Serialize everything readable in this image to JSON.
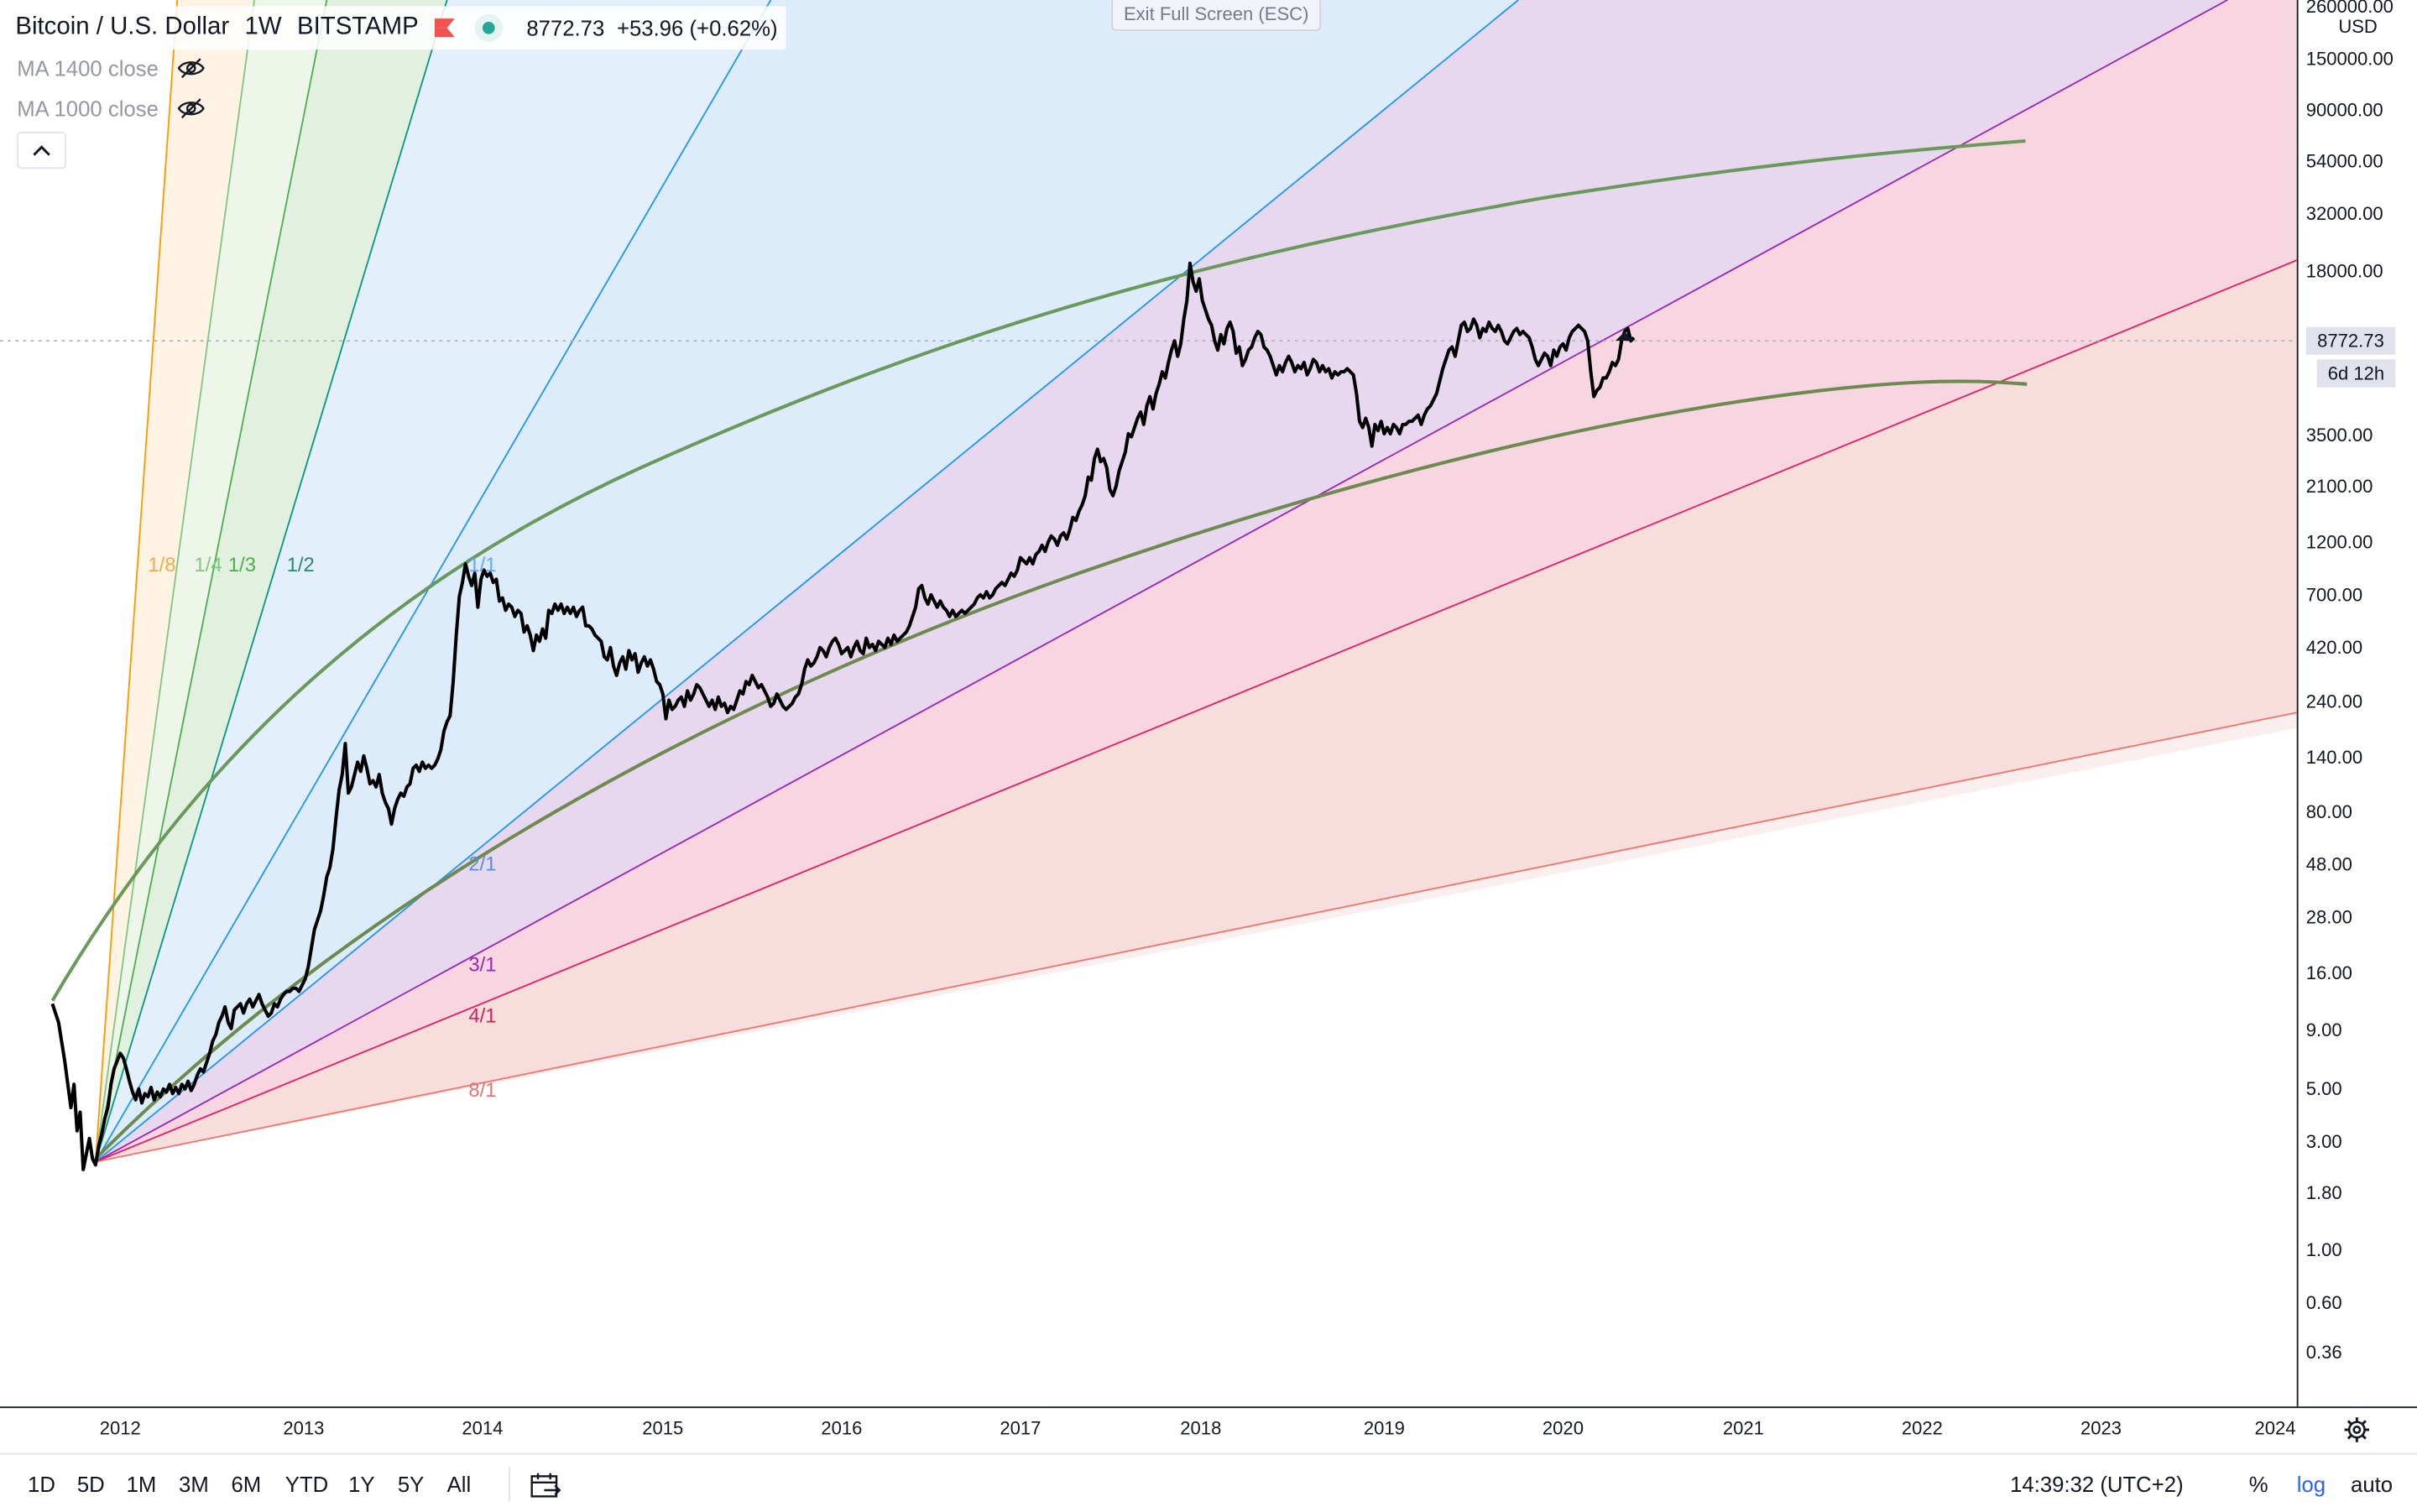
{
  "legend": {
    "symbol": "Bitcoin / U.S. Dollar",
    "interval": "1W",
    "exchange": "BITSTAMP",
    "price": "8772.73",
    "change": "+53.96 (+0.62%)"
  },
  "indicators": [
    {
      "label": "MA 1400 close",
      "icon": "eye-off-icon"
    },
    {
      "label": "MA 1000 close",
      "icon": "eye-off-icon"
    }
  ],
  "exit_fullscreen": "Exit Full Screen (ESC)",
  "fan_labels": {
    "left": [
      "1/8",
      "1/4",
      "1/3",
      "1/2"
    ],
    "right": [
      "1/1",
      "2/1",
      "3/1",
      "4/1",
      "8/1"
    ]
  },
  "price_axis": {
    "currency": "USD",
    "ticks": [
      "260000.00",
      "150000.00",
      "90000.00",
      "54000.00",
      "32000.00",
      "18000.00",
      "3500.00",
      "2100.00",
      "1200.00",
      "700.00",
      "420.00",
      "240.00",
      "140.00",
      "80.00",
      "48.00",
      "28.00",
      "16.00",
      "9.00",
      "5.00",
      "3.00",
      "1.80",
      "1.00",
      "0.60",
      "0.36"
    ],
    "last_price": "8772.73",
    "countdown": "6d 12h"
  },
  "time_axis": {
    "ticks": [
      "2012",
      "2013",
      "2014",
      "2015",
      "2016",
      "2017",
      "2018",
      "2019",
      "2020",
      "2021",
      "2022",
      "2023",
      "2024"
    ]
  },
  "bottom_bar": {
    "ranges": [
      "1D",
      "5D",
      "1M",
      "3M",
      "6M",
      "YTD",
      "1Y",
      "5Y",
      "All"
    ],
    "clock": "14:39:32 (UTC+2)",
    "percent": "%",
    "log": "log",
    "auto": "auto"
  },
  "colors": {
    "fan_orange": "#ff9800",
    "fan_lightgreen": "#81c784",
    "fan_green": "#4caf50",
    "fan_teal": "#089981",
    "fan_blue": "#2196f3",
    "fan_purple": "#9c27b0",
    "fan_pink": "#e91e63",
    "fan_red": "#f44336",
    "arc": "#689f5a",
    "log_active": "#2962ff"
  }
}
